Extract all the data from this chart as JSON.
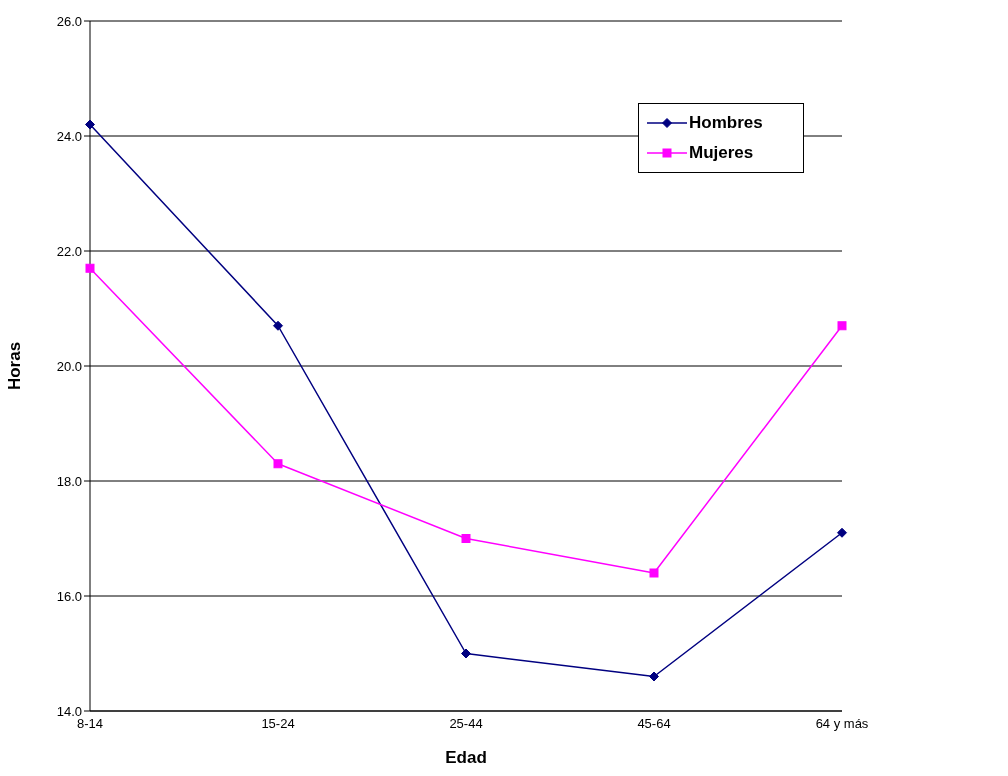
{
  "chart_data": {
    "type": "line",
    "xlabel": "Edad",
    "ylabel": "Horas",
    "categories": [
      "8-14",
      "15-24",
      "25-44",
      "45-64",
      "64 y más"
    ],
    "series": [
      {
        "name": "Hombres",
        "color": "#000080",
        "marker": "diamond",
        "values": [
          24.2,
          20.7,
          15.0,
          14.6,
          17.1
        ]
      },
      {
        "name": "Mujeres",
        "color": "#ff00ff",
        "marker": "square",
        "values": [
          21.7,
          18.3,
          17.0,
          16.4,
          20.7
        ]
      }
    ],
    "ylim": [
      14,
      26
    ],
    "yticks": [
      {
        "value": 14,
        "label": "14.0"
      },
      {
        "value": 16,
        "label": "16.0"
      },
      {
        "value": 18,
        "label": "18.0"
      },
      {
        "value": 20,
        "label": "20.0"
      },
      {
        "value": 22,
        "label": "22.0"
      },
      {
        "value": 24,
        "label": "24.0"
      },
      {
        "value": 26,
        "label": "26.0"
      }
    ],
    "grid": "y",
    "legend": "top right"
  }
}
